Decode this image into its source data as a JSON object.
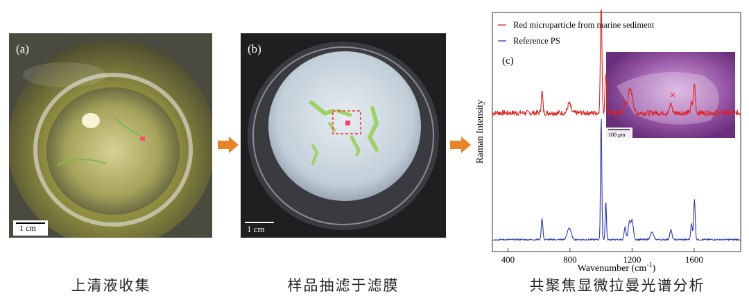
{
  "panels": {
    "a": {
      "label": "(a)",
      "scale": "1 cm",
      "caption": "上清液收集"
    },
    "b": {
      "label": "(b)",
      "scale": "1 cm",
      "caption": "样品抽滤于滤膜"
    },
    "c": {
      "label": "(c)",
      "caption": "共聚焦显微拉曼光谱分析",
      "inset_scale": "100 μm"
    }
  },
  "colors": {
    "red_series": "#e02020",
    "blue_series": "#2a35c0",
    "arrow": "#e8832a"
  },
  "chart_data": {
    "type": "line",
    "xlabel": "Wavenumber (cm",
    "xlabel_sup": "-1",
    "xlabel_close": ")",
    "ylabel": "Raman Intensity",
    "xlim": [
      300,
      1900
    ],
    "xticks": [
      "400",
      "800",
      "1200",
      "1600"
    ],
    "xtick_values": [
      400,
      800,
      1200,
      1600
    ],
    "series": [
      {
        "name": "Red microparticle from marine sediment",
        "color": "#e02020",
        "baseline": 0.58,
        "peaks": [
          [
            620,
            0.09,
            5
          ],
          [
            795,
            0.04,
            10
          ],
          [
            1001,
            0.46,
            5
          ],
          [
            1031,
            0.17,
            5
          ],
          [
            1155,
            0.04,
            8
          ],
          [
            1182,
            0.08,
            10
          ],
          [
            1200,
            0.06,
            10
          ],
          [
            1450,
            0.04,
            7
          ],
          [
            1583,
            0.04,
            6
          ],
          [
            1602,
            0.12,
            6
          ]
        ]
      },
      {
        "name": "Reference PS",
        "color": "#2a35c0",
        "baseline": 0.05,
        "peaks": [
          [
            620,
            0.09,
            5
          ],
          [
            795,
            0.05,
            12
          ],
          [
            1001,
            0.52,
            4
          ],
          [
            1031,
            0.16,
            4
          ],
          [
            1155,
            0.05,
            6
          ],
          [
            1182,
            0.07,
            7
          ],
          [
            1200,
            0.08,
            8
          ],
          [
            1328,
            0.03,
            10
          ],
          [
            1450,
            0.04,
            7
          ],
          [
            1583,
            0.07,
            5
          ],
          [
            1602,
            0.17,
            5
          ]
        ]
      }
    ]
  }
}
